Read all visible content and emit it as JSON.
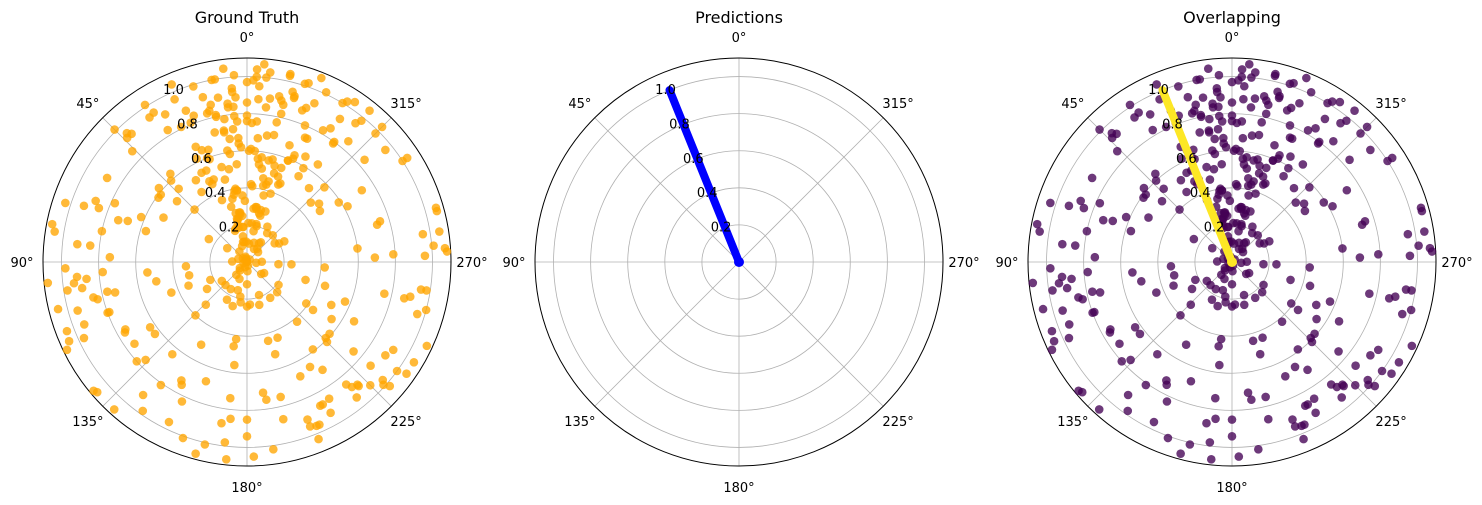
{
  "chart_data": [
    {
      "type": "scatter",
      "projection": "polar",
      "title": "Ground Truth",
      "theta_zero_location": "top",
      "theta_direction": "counterclockwise",
      "rlim": [
        0,
        1.1
      ],
      "grid": true,
      "theta_ticks": [
        0,
        45,
        90,
        135,
        180,
        225,
        270,
        315
      ],
      "theta_tick_labels": [
        "0°",
        "45°",
        "90°",
        "135°",
        "180°",
        "225°",
        "270°",
        "315°"
      ],
      "r_ticks": [
        0.2,
        0.4,
        0.6,
        0.8,
        1.0
      ],
      "r_tick_labels": [
        "0.2",
        "0.4",
        "0.6",
        "0.8",
        "1.0"
      ],
      "series": [
        {
          "color": "#FFA500",
          "points": []
        }
      ]
    },
    {
      "type": "line",
      "projection": "polar",
      "title": "Predictions",
      "theta_zero_location": "top",
      "theta_direction": "counterclockwise",
      "rlim": [
        0,
        1.1
      ],
      "grid": true,
      "theta_ticks": [
        0,
        45,
        90,
        135,
        180,
        225,
        270,
        315
      ],
      "theta_tick_labels": [
        "0°",
        "45°",
        "90°",
        "135°",
        "180°",
        "225°",
        "270°",
        "315°"
      ],
      "r_ticks": [
        0.2,
        0.4,
        0.6,
        0.8,
        1.0
      ],
      "r_tick_labels": [
        "0.2",
        "0.4",
        "0.6",
        "0.8",
        "1.0"
      ],
      "series": [
        {
          "color": "#0000FF",
          "theta_deg": 22,
          "r_range": [
            0,
            1.0
          ]
        }
      ]
    },
    {
      "type": "scatter",
      "projection": "polar",
      "title": "Overlapping",
      "theta_zero_location": "top",
      "theta_direction": "counterclockwise",
      "rlim": [
        0,
        1.1
      ],
      "grid": true,
      "theta_ticks": [
        0,
        45,
        90,
        135,
        180,
        225,
        270,
        315
      ],
      "theta_tick_labels": [
        "0°",
        "45°",
        "90°",
        "135°",
        "180°",
        "225°",
        "270°",
        "315°"
      ],
      "r_ticks": [
        0.2,
        0.4,
        0.6,
        0.8,
        1.0
      ],
      "r_tick_labels": [
        "0.2",
        "0.4",
        "0.6",
        "0.8",
        "1.0"
      ],
      "series": [
        {
          "color": "#440154",
          "points": []
        },
        {
          "color": "#FDE725",
          "theta_deg": 22,
          "r_range": [
            0,
            1.0
          ]
        }
      ]
    }
  ]
}
